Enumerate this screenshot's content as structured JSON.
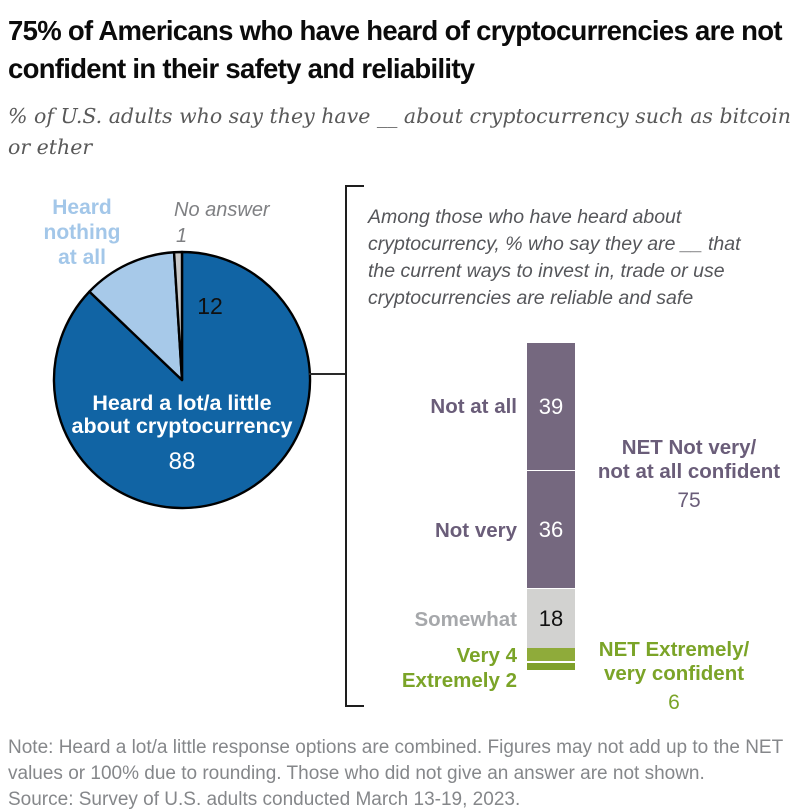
{
  "page": {
    "title": "75% of Americans who have heard of cryptocurrencies are not confident in their safety and reliability",
    "subtitle": "% of U.S. adults who say they have __ about cryptocurrency such as bitcoin or ether",
    "note": "Note: Heard a lot/a little response options are combined. Figures may not add up to the NET values or 100% due to rounding. Those who did not give an answer are not shown.",
    "source": "Source: Survey of U.S. adults conducted March 13-19, 2023."
  },
  "chart_data": [
    {
      "type": "pie",
      "title": "% of U.S. adults who say they have __ about cryptocurrency such as bitcoin or ether",
      "slices": [
        {
          "label": "Heard a lot/a little about cryptocurrency",
          "value": 88,
          "color": "#1164a4",
          "label_color": "#ffffff"
        },
        {
          "label": "Heard nothing at all",
          "value": 12,
          "color": "#a7c9e9",
          "label_color": "#a3c7e9"
        },
        {
          "label": "No answer",
          "value": 1,
          "color": "#c8c8c8",
          "label_color": "#7f8083"
        }
      ],
      "inside_label_line1": "Heard a lot/a little",
      "inside_label_line2": "about cryptocurrency",
      "start_angle": "12 o'clock, clockwise",
      "outline_color": "#000000"
    },
    {
      "type": "bar",
      "subtype": "stacked-vertical-single",
      "intro_lines": [
        "Among those who have heard about",
        "cryptocurrency, % who say they are __ that",
        "the current ways to invest in, trade or use",
        "cryptocurrencies are reliable and safe"
      ],
      "categories": [
        "Not at all",
        "Not very",
        "Somewhat",
        "Very",
        "Extremely"
      ],
      "values": [
        39,
        36,
        18,
        4,
        2
      ],
      "colors": [
        "#75687f",
        "#75687f",
        "#d2d2d0",
        "#8fab3a",
        "#7fa02a"
      ],
      "value_label_colors": [
        "#ffffff",
        "#ffffff",
        "#111111",
        null,
        null
      ],
      "nets": [
        {
          "line1": "NET Not very/",
          "line2": "not at all confident",
          "value": 75,
          "color": "#6a5d79"
        },
        {
          "line1": "NET Extremely/",
          "line2": "very confident",
          "value": 6,
          "color": "#7ba428"
        }
      ]
    }
  ]
}
